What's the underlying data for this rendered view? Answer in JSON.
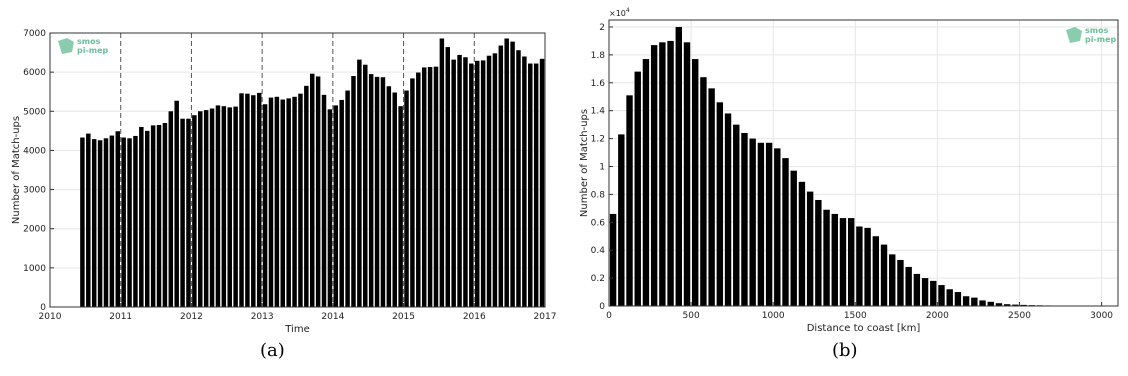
{
  "panels": {
    "a_label": "(a)",
    "b_label": "(b)"
  },
  "logo": {
    "line1": "smos",
    "line2": "pi-mep",
    "color": "#6dbf9a"
  },
  "chart_data": [
    {
      "type": "bar",
      "xlabel": "Time",
      "ylabel": "Number of Match-ups",
      "xlim": [
        2010,
        2017
      ],
      "ylim": [
        0,
        7000
      ],
      "xticks": [
        2010,
        2011,
        2012,
        2013,
        2014,
        2015,
        2016,
        2017
      ],
      "yticks": [
        0,
        1000,
        2000,
        3000,
        4000,
        5000,
        6000,
        7000
      ],
      "year_dividers": [
        2011,
        2012,
        2013,
        2014,
        2015,
        2016,
        2017
      ],
      "grid": true,
      "x_start": "2010-06",
      "x_step": "1 month",
      "values": [
        4330,
        4430,
        4290,
        4260,
        4310,
        4380,
        4490,
        4330,
        4310,
        4370,
        4600,
        4500,
        4640,
        4650,
        4700,
        5000,
        5270,
        4810,
        4810,
        4900,
        5000,
        5030,
        5070,
        5150,
        5130,
        5100,
        5120,
        5460,
        5450,
        5410,
        5470,
        5180,
        5350,
        5370,
        5300,
        5330,
        5370,
        5450,
        5650,
        5960,
        5890,
        5420,
        5050,
        5150,
        5290,
        5530,
        5900,
        6320,
        6190,
        5950,
        5880,
        5870,
        5640,
        5480,
        5130,
        5530,
        5840,
        5990,
        6120,
        6130,
        6140,
        6860,
        6640,
        6320,
        6440,
        6380,
        6220,
        6290,
        6300,
        6420,
        6480,
        6680,
        6860,
        6780,
        6560,
        6400,
        6220,
        6220,
        6340
      ]
    },
    {
      "type": "bar",
      "xlabel": "Distance to coast [km]",
      "ylabel": "Number of Match-ups",
      "y_multiplier": "×10",
      "y_multiplier_exp": "4",
      "xlim": [
        0,
        3100
      ],
      "ylim": [
        0,
        2.05
      ],
      "xticks": [
        0,
        500,
        1000,
        1500,
        2000,
        2500,
        3000
      ],
      "yticks": [
        0,
        0.2,
        0.4,
        0.6,
        0.8,
        1,
        1.2,
        1.4,
        1.6,
        1.8,
        2
      ],
      "grid": true,
      "bin_width_km": 50,
      "values": [
        0.66,
        1.23,
        1.51,
        1.68,
        1.77,
        1.87,
        1.89,
        1.9,
        2.0,
        1.89,
        1.77,
        1.64,
        1.56,
        1.46,
        1.38,
        1.3,
        1.24,
        1.2,
        1.17,
        1.17,
        1.13,
        1.06,
        0.97,
        0.89,
        0.82,
        0.76,
        0.69,
        0.66,
        0.63,
        0.63,
        0.57,
        0.56,
        0.5,
        0.44,
        0.37,
        0.33,
        0.28,
        0.23,
        0.2,
        0.18,
        0.15,
        0.12,
        0.1,
        0.07,
        0.06,
        0.04,
        0.03,
        0.02,
        0.013,
        0.01,
        0.008,
        0.006,
        0.005,
        0.004,
        0.003,
        0.002,
        0.001,
        0.001,
        0.001
      ]
    }
  ]
}
